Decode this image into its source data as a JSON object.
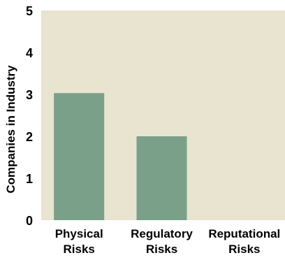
{
  "chart_data": {
    "type": "bar",
    "ylabel": "Companies in Industry",
    "xlabel": "",
    "ylim": [
      0,
      5
    ],
    "yticks": [
      0,
      1,
      2,
      3,
      4,
      5
    ],
    "grid": false,
    "categories": [
      {
        "lines": [
          "Physical",
          "Risks"
        ]
      },
      {
        "lines": [
          "Regulatory",
          "Risks"
        ]
      },
      {
        "lines": [
          "Reputational",
          "Risks"
        ]
      }
    ],
    "values": [
      3.03,
      2.0,
      0
    ],
    "colors": {
      "plot_background": "#e8e4d0",
      "bar": "#7ba08a",
      "text": "#000000"
    }
  }
}
